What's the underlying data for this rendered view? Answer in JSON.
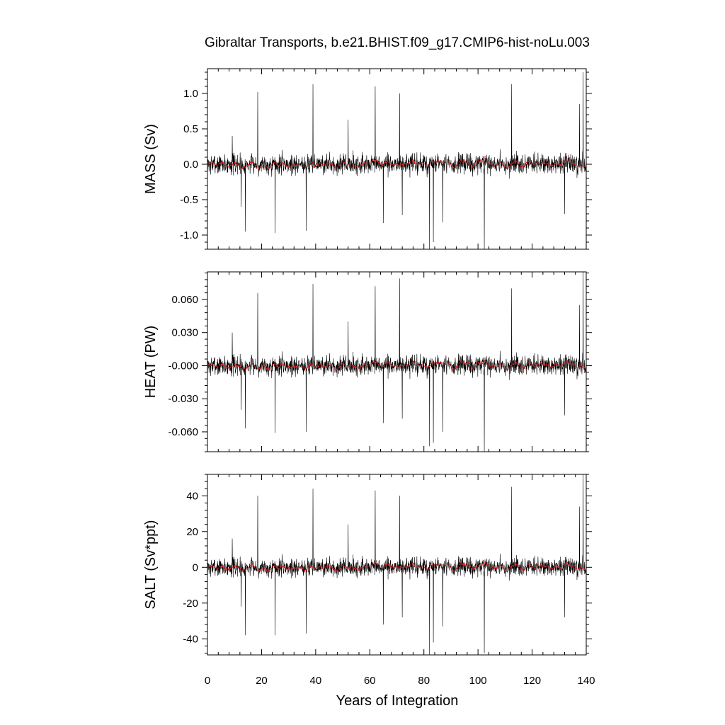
{
  "chart_data": {
    "type": "line",
    "title": "Gibraltar Transports, b.e21.BHIST.f09_g17.CMIP6-hist-noLu.003",
    "xlabel": "Years of Integration",
    "xlim": [
      0,
      140
    ],
    "xticks": [
      0,
      20,
      40,
      60,
      80,
      100,
      120,
      140
    ],
    "colors": {
      "raw": "#000000",
      "smoothed": "#e02020"
    },
    "panels": [
      {
        "ylabel": "MASS (Sv)",
        "ylim": [
          -1.2,
          1.35
        ],
        "yticks": [
          -1.0,
          -0.5,
          0.0,
          0.5,
          1.0
        ],
        "yticklabels": [
          "-1.0",
          "-0.5",
          "0.0",
          "0.5",
          "1.0"
        ],
        "series": [
          {
            "values": {
              "amplitude": 0.22,
              "n": 1680,
              "spikes": [
                [
                  9.2,
                  0.4
                ],
                [
                  12.5,
                  -0.6
                ],
                [
                  14.0,
                  -0.95
                ],
                [
                  18.6,
                  1.02
                ],
                [
                  25.0,
                  -0.97
                ],
                [
                  36.5,
                  -0.94
                ],
                [
                  39.0,
                  1.13
                ],
                [
                  52.0,
                  0.63
                ],
                [
                  62.0,
                  1.1
                ],
                [
                  65.0,
                  -0.83
                ],
                [
                  71.0,
                  1.0
                ],
                [
                  72.0,
                  -0.72
                ],
                [
                  82.1,
                  -1.2
                ],
                [
                  83.5,
                  -1.1
                ],
                [
                  87.0,
                  -0.82
                ],
                [
                  102.3,
                  -1.2
                ],
                [
                  112.4,
                  1.13
                ],
                [
                  132.0,
                  -0.7
                ],
                [
                  137.5,
                  0.85
                ],
                [
                  138.8,
                  1.3
                ]
              ]
            }
          },
          {
            "smoothed": true,
            "values": {
              "amplitude": 0.08
            }
          }
        ]
      },
      {
        "ylabel": "HEAT (PW)",
        "ylim": [
          -0.078,
          0.085
        ],
        "yticks": [
          -0.06,
          -0.03,
          0.0,
          0.03,
          0.06
        ],
        "yticklabels": [
          "-0.060",
          "-0.030",
          "-0.000",
          "0.030",
          "0.060"
        ],
        "series": [
          {
            "values": {
              "amplitude": 0.014,
              "n": 1680,
              "spikes": [
                [
                  9.2,
                  0.03
                ],
                [
                  12.5,
                  -0.04
                ],
                [
                  14.0,
                  -0.057
                ],
                [
                  18.6,
                  0.066
                ],
                [
                  25.0,
                  -0.061
                ],
                [
                  36.5,
                  -0.06
                ],
                [
                  39.0,
                  0.074
                ],
                [
                  52.0,
                  0.04
                ],
                [
                  62.0,
                  0.072
                ],
                [
                  65.0,
                  -0.052
                ],
                [
                  71.0,
                  0.079
                ],
                [
                  72.0,
                  -0.048
                ],
                [
                  82.1,
                  -0.073
                ],
                [
                  83.5,
                  -0.07
                ],
                [
                  87.0,
                  -0.06
                ],
                [
                  102.3,
                  -0.078
                ],
                [
                  112.4,
                  0.07
                ],
                [
                  132.0,
                  -0.045
                ],
                [
                  137.5,
                  0.055
                ],
                [
                  138.8,
                  0.085
                ]
              ]
            }
          },
          {
            "smoothed": true,
            "values": {
              "amplitude": 0.005
            }
          }
        ]
      },
      {
        "ylabel": "SALT (Sv*ppt)",
        "ylim": [
          -49,
          52
        ],
        "yticks": [
          -40,
          -20,
          0,
          20,
          40
        ],
        "yticklabels": [
          "-40",
          "-20",
          "0",
          "20",
          "40"
        ],
        "series": [
          {
            "values": {
              "amplitude": 8,
              "n": 1680,
              "spikes": [
                [
                  9.2,
                  16
                ],
                [
                  12.5,
                  -22
                ],
                [
                  14.0,
                  -38
                ],
                [
                  18.6,
                  40
                ],
                [
                  25.0,
                  -38
                ],
                [
                  36.5,
                  -37
                ],
                [
                  39.0,
                  44
                ],
                [
                  52.0,
                  24
                ],
                [
                  62.0,
                  43
                ],
                [
                  65.0,
                  -32
                ],
                [
                  71.0,
                  40
                ],
                [
                  72.0,
                  -28
                ],
                [
                  82.1,
                  -49
                ],
                [
                  83.5,
                  -42
                ],
                [
                  87.0,
                  -33
                ],
                [
                  102.3,
                  -48
                ],
                [
                  112.4,
                  45
                ],
                [
                  132.0,
                  -28
                ],
                [
                  137.5,
                  34
                ],
                [
                  138.8,
                  52
                ]
              ]
            }
          },
          {
            "smoothed": true,
            "values": {
              "amplitude": 3
            }
          }
        ]
      }
    ]
  }
}
